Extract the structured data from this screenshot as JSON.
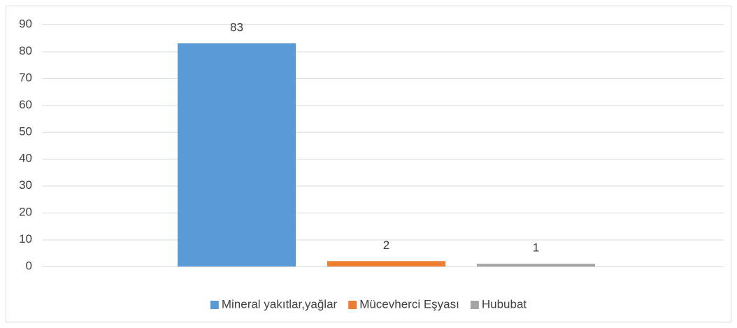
{
  "chart_data": {
    "type": "bar",
    "categories": [
      null
    ],
    "series": [
      {
        "name": "Mineral yakıtlar,yağlar",
        "color": "#5b9bd5",
        "values": [
          83
        ]
      },
      {
        "name": "Mücevherci Eşyası",
        "color": "#ed7d31",
        "values": [
          2
        ]
      },
      {
        "name": "Hububat",
        "color": "#a5a5a5",
        "values": [
          1
        ]
      }
    ],
    "ylim": [
      0,
      90
    ],
    "yticks": [
      0,
      10,
      20,
      30,
      40,
      50,
      60,
      70,
      80,
      90
    ],
    "grid": true,
    "legend": "bottom"
  }
}
